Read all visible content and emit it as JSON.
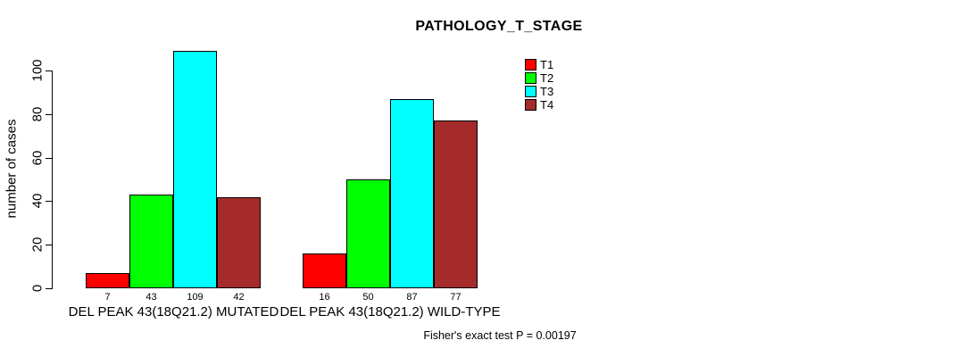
{
  "chart": {
    "title": "PATHOLOGY_T_STAGE",
    "ylabel": "number of cases",
    "footnote": "Fisher's exact test P = 0.00197"
  },
  "chart_data": {
    "type": "bar",
    "title": "PATHOLOGY_T_STAGE",
    "xlabel": "",
    "ylabel": "number of cases",
    "ylim": [
      0,
      110
    ],
    "yticks": [
      0,
      20,
      40,
      60,
      80,
      100
    ],
    "grid": false,
    "legend_position": "top-right",
    "categories": [
      "DEL PEAK 43(18Q21.2) MUTATED",
      "DEL PEAK 43(18Q21.2) WILD-TYPE"
    ],
    "series": [
      {
        "name": "T1",
        "color": "#FF0000",
        "values": [
          7,
          16
        ]
      },
      {
        "name": "T2",
        "color": "#00FF00",
        "values": [
          43,
          50
        ]
      },
      {
        "name": "T3",
        "color": "#00FFFF",
        "values": [
          109,
          87
        ]
      },
      {
        "name": "T4",
        "color": "#A52A2A",
        "values": [
          42,
          77
        ]
      }
    ],
    "bar_value_labels": [
      [
        7,
        43,
        109,
        42
      ],
      [
        16,
        50,
        87,
        77
      ]
    ],
    "annotation": "Fisher's exact test P = 0.00197"
  }
}
